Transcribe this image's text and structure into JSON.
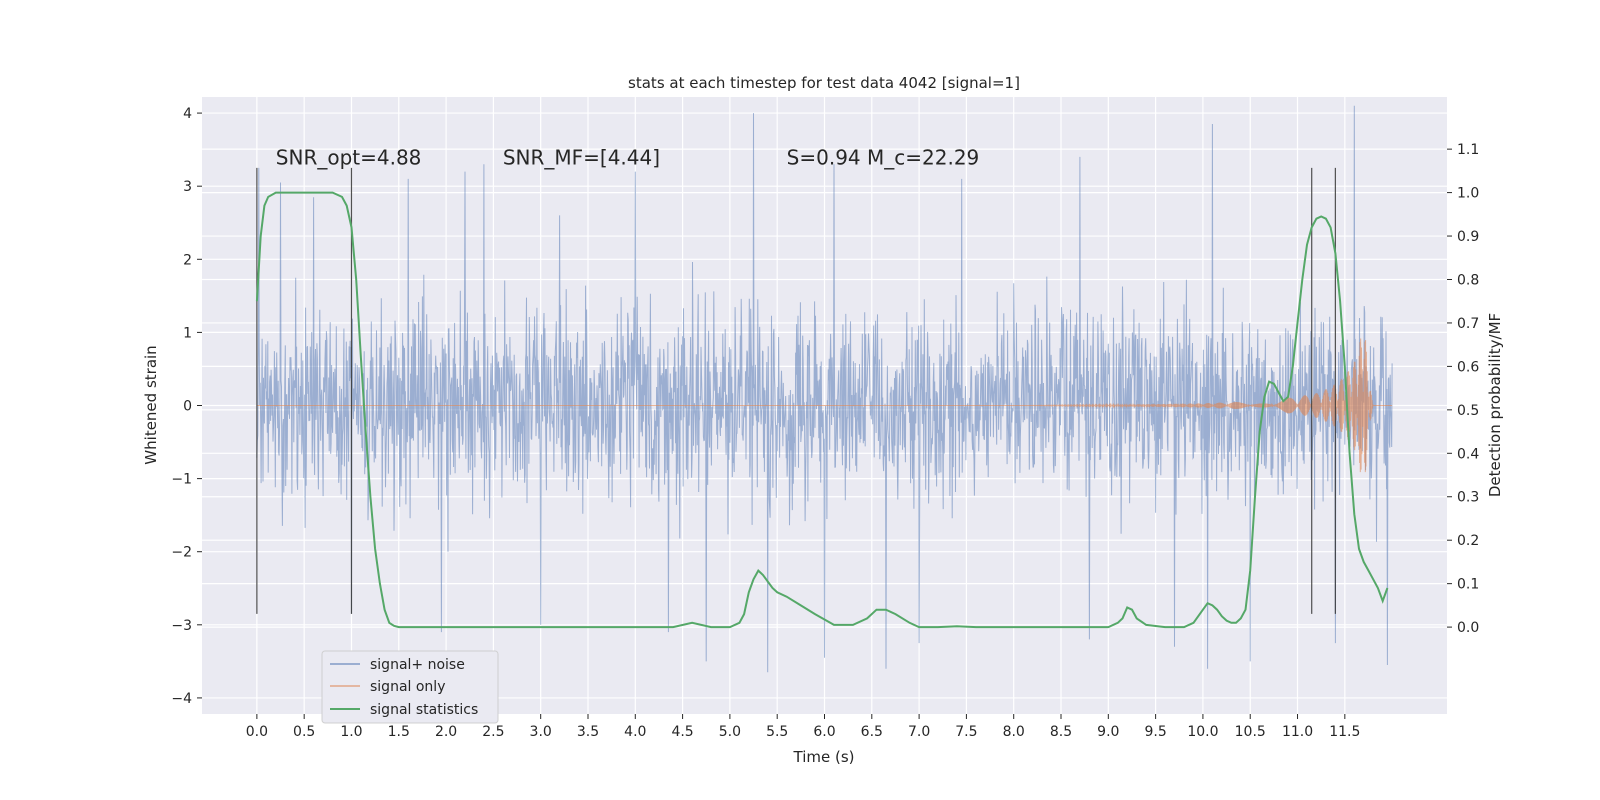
{
  "chart_data": {
    "type": "line",
    "title": "stats at each timestep for test data 4042 [signal=1]",
    "xlabel": "Time (s)",
    "ylabel_left": "Whitened strain",
    "ylabel_right": "Detection probability/MF",
    "xlim": [
      -0.58,
      12.58
    ],
    "ylim_left": [
      -4.22,
      4.22
    ],
    "ylim_right": [
      -0.2,
      1.22
    ],
    "x_ticks": [
      0.0,
      0.5,
      1.0,
      1.5,
      2.0,
      2.5,
      3.0,
      3.5,
      4.0,
      4.5,
      5.0,
      5.5,
      6.0,
      6.5,
      7.0,
      7.5,
      8.0,
      8.5,
      9.0,
      9.5,
      10.0,
      10.5,
      11.0,
      11.5
    ],
    "x_tick_labels": [
      "0.0",
      "0.5",
      "1.0",
      "1.5",
      "2.0",
      "2.5",
      "3.0",
      "3.5",
      "4.0",
      "4.5",
      "5.0",
      "5.5",
      "6.0",
      "6.5",
      "7.0",
      "7.5",
      "8.0",
      "8.5",
      "9.0",
      "9.5",
      "10.0",
      "10.5",
      "11.0",
      "11.5"
    ],
    "y_ticks_left": [
      4,
      3,
      2,
      1,
      0,
      -1,
      -2,
      -3,
      -4
    ],
    "y_tick_labels_left": [
      "4",
      "3",
      "2",
      "1",
      "0",
      "−1",
      "−2",
      "−3",
      "−4"
    ],
    "y_ticks_right": [
      1.1,
      1.0,
      0.9,
      0.8,
      0.7,
      0.6,
      0.5,
      0.4,
      0.3,
      0.2,
      0.1,
      0.0
    ],
    "y_tick_labels_right": [
      "1.1",
      "1.0",
      "0.9",
      "0.8",
      "0.7",
      "0.6",
      "0.5",
      "0.4",
      "0.3",
      "0.2",
      "0.1",
      "0.0"
    ],
    "annotations": [
      {
        "x": 0.2,
        "y": 3.3,
        "text": "SNR_opt=4.88"
      },
      {
        "x": 2.6,
        "y": 3.3,
        "text": "SNR_MF=[4.44]"
      },
      {
        "x": 5.6,
        "y": 3.3,
        "text": "S=0.94   M_c=22.29"
      }
    ],
    "vertical_markers": [
      0.0,
      1.0,
      11.15,
      11.4
    ],
    "vertical_marker_range": [
      -2.85,
      3.25
    ],
    "legend": {
      "placement": "lower-left",
      "entries": [
        "signal+ noise",
        "signal only",
        "signal statistics"
      ]
    },
    "series": [
      {
        "name": "signal+ noise",
        "axis": "left",
        "color": "#4c72b0",
        "x_range": [
          0.0,
          12.0
        ],
        "typical_range": [
          -1.6,
          1.6
        ],
        "peaks": [
          {
            "x": 0.02,
            "y": 3.25
          },
          {
            "x": 0.25,
            "y": 3.05
          },
          {
            "x": 0.6,
            "y": 2.85
          },
          {
            "x": 1.6,
            "y": 3.1
          },
          {
            "x": 2.2,
            "y": 3.2
          },
          {
            "x": 2.4,
            "y": 3.3
          },
          {
            "x": 3.2,
            "y": 2.6
          },
          {
            "x": 4.0,
            "y": 3.2
          },
          {
            "x": 5.25,
            "y": 4.0
          },
          {
            "x": 6.1,
            "y": 3.3
          },
          {
            "x": 7.45,
            "y": 3.1
          },
          {
            "x": 8.7,
            "y": 3.4
          },
          {
            "x": 10.1,
            "y": 3.85
          },
          {
            "x": 11.6,
            "y": 4.1
          },
          {
            "x": 1.0,
            "y": -2.85
          },
          {
            "x": 1.95,
            "y": -3.1
          },
          {
            "x": 3.0,
            "y": -3.0
          },
          {
            "x": 4.35,
            "y": -3.1
          },
          {
            "x": 4.75,
            "y": -3.5
          },
          {
            "x": 5.4,
            "y": -3.65
          },
          {
            "x": 6.0,
            "y": -3.45
          },
          {
            "x": 6.65,
            "y": -3.6
          },
          {
            "x": 7.0,
            "y": -3.25
          },
          {
            "x": 8.8,
            "y": -3.2
          },
          {
            "x": 9.7,
            "y": -3.3
          },
          {
            "x": 10.05,
            "y": -3.6
          },
          {
            "x": 10.5,
            "y": -3.5
          },
          {
            "x": 11.4,
            "y": -3.25
          },
          {
            "x": 11.95,
            "y": -3.55
          }
        ]
      },
      {
        "name": "signal only",
        "axis": "left",
        "color": "#dd8452",
        "x": [
          0.0,
          8.0,
          9.0,
          9.6,
          10.0,
          10.4,
          10.8,
          11.0,
          11.2,
          11.35,
          11.5,
          11.6,
          11.65,
          11.7,
          11.72,
          11.76,
          11.8,
          12.0
        ],
        "envelope": [
          0.0,
          0.0,
          0.01,
          0.02,
          0.03,
          0.05,
          0.09,
          0.12,
          0.17,
          0.25,
          0.4,
          0.6,
          0.8,
          1.2,
          0.9,
          0.3,
          0.0,
          0.0
        ]
      },
      {
        "name": "signal statistics",
        "axis": "right",
        "color": "#55a868",
        "x": [
          0.0,
          0.04,
          0.08,
          0.12,
          0.2,
          0.3,
          0.5,
          0.7,
          0.8,
          0.9,
          0.95,
          1.0,
          1.05,
          1.1,
          1.15,
          1.2,
          1.25,
          1.3,
          1.35,
          1.4,
          1.45,
          1.5,
          1.6,
          2.0,
          3.0,
          4.0,
          4.4,
          4.6,
          4.8,
          5.0,
          5.1,
          5.15,
          5.2,
          5.25,
          5.3,
          5.35,
          5.45,
          5.5,
          5.6,
          5.75,
          5.9,
          6.1,
          6.3,
          6.45,
          6.55,
          6.65,
          6.75,
          6.9,
          7.0,
          7.2,
          7.4,
          7.6,
          8.0,
          8.5,
          9.0,
          9.1,
          9.15,
          9.2,
          9.25,
          9.3,
          9.4,
          9.6,
          9.8,
          9.9,
          10.0,
          10.05,
          10.1,
          10.15,
          10.2,
          10.25,
          10.3,
          10.35,
          10.4,
          10.45,
          10.5,
          10.55,
          10.6,
          10.65,
          10.7,
          10.75,
          10.8,
          10.85,
          10.9,
          10.95,
          11.0,
          11.05,
          11.1,
          11.15,
          11.2,
          11.25,
          11.3,
          11.35,
          11.4,
          11.45,
          11.5,
          11.55,
          11.6,
          11.65,
          11.7,
          11.75,
          11.8,
          11.85,
          11.9,
          11.95
        ],
        "y": [
          0.75,
          0.9,
          0.97,
          0.99,
          1.0,
          1.0,
          1.0,
          1.0,
          1.0,
          0.99,
          0.97,
          0.92,
          0.8,
          0.62,
          0.45,
          0.3,
          0.18,
          0.1,
          0.04,
          0.01,
          0.003,
          0.0,
          0.0,
          0.0,
          0.0,
          0.0,
          0.0,
          0.01,
          0.0,
          0.0,
          0.01,
          0.03,
          0.08,
          0.11,
          0.13,
          0.12,
          0.09,
          0.08,
          0.07,
          0.05,
          0.03,
          0.005,
          0.005,
          0.02,
          0.04,
          0.04,
          0.03,
          0.01,
          0.0,
          0.0,
          0.002,
          0.0,
          0.0,
          0.0,
          0.0,
          0.01,
          0.02,
          0.045,
          0.04,
          0.02,
          0.005,
          0.0,
          0.0,
          0.01,
          0.04,
          0.055,
          0.05,
          0.04,
          0.025,
          0.015,
          0.01,
          0.01,
          0.02,
          0.04,
          0.13,
          0.3,
          0.45,
          0.53,
          0.565,
          0.56,
          0.54,
          0.52,
          0.53,
          0.6,
          0.7,
          0.8,
          0.88,
          0.92,
          0.94,
          0.945,
          0.94,
          0.92,
          0.86,
          0.75,
          0.6,
          0.4,
          0.26,
          0.18,
          0.15,
          0.13,
          0.11,
          0.09,
          0.06,
          0.09
        ]
      }
    ]
  }
}
